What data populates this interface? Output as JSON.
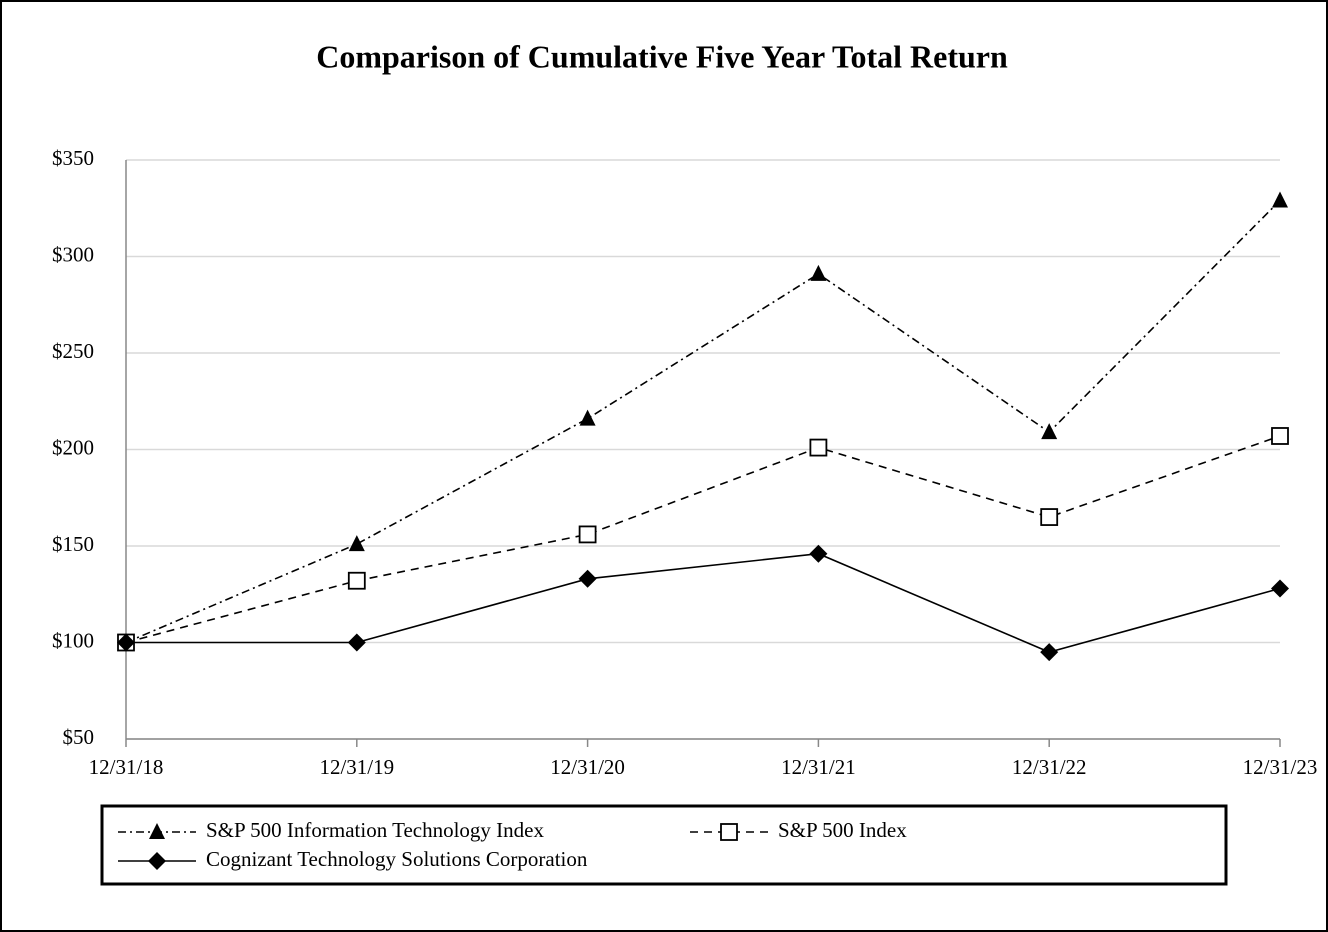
{
  "chart_data": {
    "type": "line",
    "title": "Comparison of Cumulative Five Year Total Return",
    "categories": [
      "12/31/18",
      "12/31/19",
      "12/31/20",
      "12/31/21",
      "12/31/22",
      "12/31/23"
    ],
    "ylim": [
      50,
      350
    ],
    "yticks": [
      {
        "value": 50,
        "label": "$50"
      },
      {
        "value": 100,
        "label": "$100"
      },
      {
        "value": 150,
        "label": "$150"
      },
      {
        "value": 200,
        "label": "$200"
      },
      {
        "value": 250,
        "label": "$250"
      },
      {
        "value": 300,
        "label": "$300"
      },
      {
        "value": 350,
        "label": "$350"
      }
    ],
    "grid": true,
    "series": [
      {
        "name": "S&P 500 Information Technology Index",
        "color": "#000000",
        "marker": "triangle",
        "dash": "dashdot",
        "values": [
          100,
          151,
          216,
          291,
          209,
          329
        ]
      },
      {
        "name": "S&P 500 Index",
        "color": "#000000",
        "marker": "square",
        "dash": "dashed",
        "values": [
          100,
          132,
          156,
          201,
          165,
          207
        ]
      },
      {
        "name": "Cognizant Technology Solutions Corporation",
        "color": "#000000",
        "marker": "diamond",
        "dash": "solid",
        "values": [
          100,
          100,
          133,
          146,
          95,
          128
        ]
      }
    ]
  }
}
